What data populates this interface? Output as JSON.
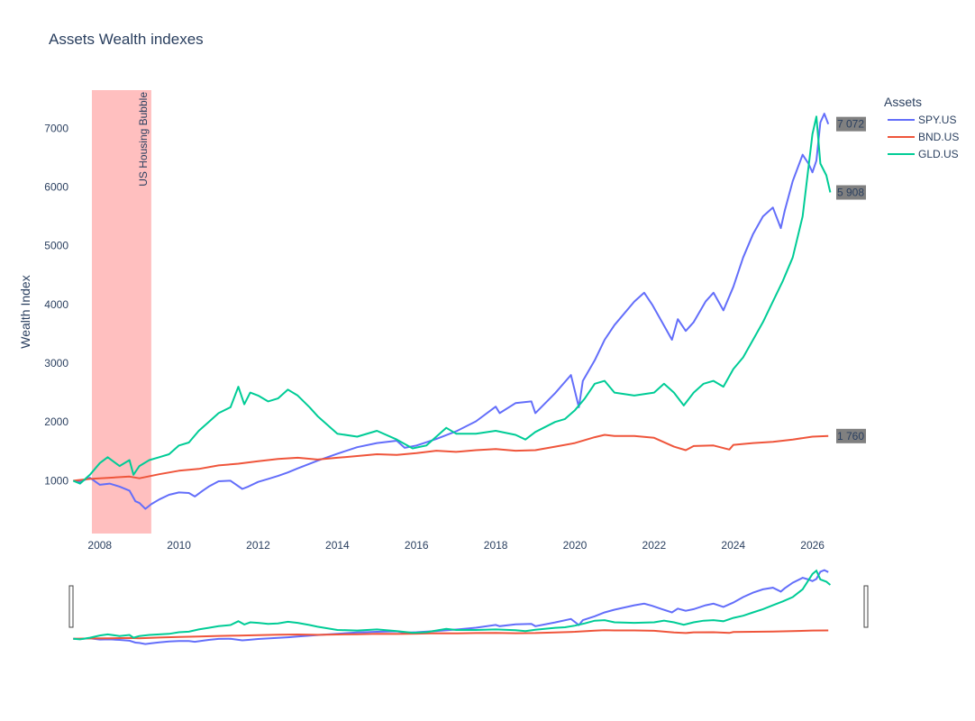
{
  "chart_data": {
    "type": "line",
    "title": "Assets Wealth indexes",
    "ylabel": "Wealth Index",
    "xlabel": "",
    "xlim": [
      2007.3,
      2026.6
    ],
    "ylim": [
      100,
      7650
    ],
    "x_ticks": [
      2008,
      2010,
      2012,
      2014,
      2016,
      2018,
      2020,
      2022,
      2024,
      2026
    ],
    "y_ticks": [
      1000,
      2000,
      3000,
      4000,
      5000,
      6000,
      7000
    ],
    "grid": false,
    "legend": {
      "title": "Assets",
      "position": "top-right"
    },
    "shaded_region": {
      "label": "US Housing Bubble",
      "x0": 2007.8,
      "x1": 2009.3,
      "color": "#ffbfbf"
    },
    "end_labels": [
      {
        "series": "SPY.US",
        "text": "7 072",
        "value": 7072
      },
      {
        "series": "GLD.US",
        "text": "5 908",
        "value": 5908
      },
      {
        "series": "BND.US",
        "text": "1 760",
        "value": 1760
      }
    ],
    "series": [
      {
        "name": "SPY.US",
        "color": "#636efa",
        "x": [
          2007.33,
          2007.5,
          2007.75,
          2008.0,
          2008.25,
          2008.5,
          2008.75,
          2008.9,
          2009.0,
          2009.15,
          2009.3,
          2009.5,
          2009.75,
          2010.0,
          2010.25,
          2010.4,
          2010.6,
          2010.75,
          2011.0,
          2011.3,
          2011.6,
          2011.75,
          2012.0,
          2012.25,
          2012.5,
          2012.75,
          2013.0,
          2013.5,
          2014.0,
          2014.5,
          2015.0,
          2015.5,
          2015.7,
          2016.0,
          2016.5,
          2017.0,
          2017.5,
          2018.0,
          2018.1,
          2018.5,
          2018.9,
          2019.0,
          2019.5,
          2019.9,
          2020.1,
          2020.2,
          2020.5,
          2020.75,
          2021.0,
          2021.5,
          2021.75,
          2021.95,
          2022.2,
          2022.45,
          2022.6,
          2022.8,
          2023.0,
          2023.3,
          2023.5,
          2023.75,
          2024.0,
          2024.25,
          2024.5,
          2024.75,
          2025.0,
          2025.2,
          2025.3,
          2025.5,
          2025.75,
          2025.9,
          2026.0,
          2026.1,
          2026.2,
          2026.3,
          2026.4
        ],
        "values": [
          1000,
          980,
          1050,
          930,
          950,
          900,
          830,
          650,
          620,
          520,
          600,
          680,
          760,
          800,
          790,
          730,
          830,
          900,
          990,
          1000,
          860,
          900,
          980,
          1030,
          1080,
          1140,
          1210,
          1340,
          1460,
          1570,
          1640,
          1680,
          1560,
          1600,
          1710,
          1840,
          2010,
          2260,
          2150,
          2320,
          2350,
          2150,
          2490,
          2800,
          2250,
          2700,
          3050,
          3400,
          3650,
          4050,
          4200,
          4000,
          3700,
          3400,
          3750,
          3550,
          3700,
          4050,
          4200,
          3900,
          4300,
          4800,
          5200,
          5500,
          5650,
          5300,
          5600,
          6100,
          6550,
          6400,
          6250,
          6450,
          7100,
          7250,
          7072
        ]
      },
      {
        "name": "BND.US",
        "color": "#ef553b",
        "x": [
          2007.33,
          2007.75,
          2008.25,
          2008.75,
          2009.0,
          2009.5,
          2010.0,
          2010.5,
          2011.0,
          2011.5,
          2012.0,
          2012.5,
          2013.0,
          2013.5,
          2014.0,
          2014.5,
          2015.0,
          2015.5,
          2016.0,
          2016.5,
          2017.0,
          2017.5,
          2018.0,
          2018.5,
          2019.0,
          2019.5,
          2020.0,
          2020.5,
          2020.75,
          2021.0,
          2021.5,
          2022.0,
          2022.5,
          2022.8,
          2023.0,
          2023.5,
          2023.9,
          2024.0,
          2024.5,
          2025.0,
          2025.5,
          2026.0,
          2026.4
        ],
        "values": [
          1000,
          1030,
          1050,
          1070,
          1040,
          1110,
          1170,
          1200,
          1260,
          1290,
          1330,
          1370,
          1390,
          1360,
          1390,
          1420,
          1450,
          1440,
          1470,
          1510,
          1490,
          1520,
          1540,
          1510,
          1520,
          1580,
          1640,
          1740,
          1780,
          1760,
          1760,
          1730,
          1580,
          1520,
          1590,
          1600,
          1530,
          1610,
          1640,
          1660,
          1700,
          1750,
          1760
        ]
      },
      {
        "name": "GLD.US",
        "color": "#00cc96",
        "x": [
          2007.33,
          2007.5,
          2007.75,
          2008.0,
          2008.2,
          2008.5,
          2008.75,
          2008.85,
          2009.0,
          2009.25,
          2009.5,
          2009.75,
          2010.0,
          2010.25,
          2010.5,
          2010.75,
          2011.0,
          2011.3,
          2011.5,
          2011.65,
          2011.8,
          2012.0,
          2012.25,
          2012.5,
          2012.75,
          2013.0,
          2013.3,
          2013.5,
          2014.0,
          2014.5,
          2015.0,
          2015.5,
          2015.9,
          2016.25,
          2016.5,
          2016.75,
          2017.0,
          2017.5,
          2018.0,
          2018.5,
          2018.75,
          2019.0,
          2019.5,
          2019.75,
          2020.0,
          2020.25,
          2020.5,
          2020.75,
          2021.0,
          2021.5,
          2022.0,
          2022.25,
          2022.5,
          2022.75,
          2023.0,
          2023.25,
          2023.5,
          2023.75,
          2024.0,
          2024.25,
          2024.5,
          2024.75,
          2025.0,
          2025.25,
          2025.5,
          2025.75,
          2026.0,
          2026.1,
          2026.2,
          2026.35,
          2026.45
        ],
        "values": [
          1000,
          950,
          1100,
          1300,
          1400,
          1250,
          1350,
          1100,
          1250,
          1350,
          1400,
          1450,
          1600,
          1650,
          1850,
          2000,
          2150,
          2250,
          2600,
          2300,
          2500,
          2450,
          2350,
          2400,
          2550,
          2450,
          2250,
          2100,
          1800,
          1750,
          1850,
          1700,
          1550,
          1600,
          1750,
          1900,
          1800,
          1800,
          1850,
          1780,
          1700,
          1830,
          2000,
          2050,
          2200,
          2400,
          2650,
          2700,
          2500,
          2450,
          2500,
          2650,
          2500,
          2280,
          2500,
          2650,
          2700,
          2600,
          2900,
          3100,
          3400,
          3700,
          4050,
          4400,
          4800,
          5500,
          6900,
          7200,
          6400,
          6200,
          5908
        ]
      }
    ]
  }
}
